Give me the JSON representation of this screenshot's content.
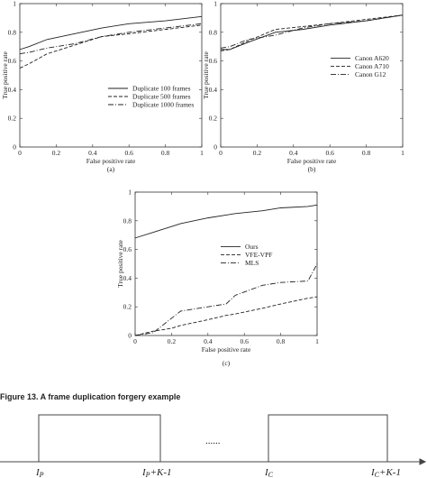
{
  "chart_data": [
    {
      "type": "line",
      "label": "(a)",
      "xlabel": "False positive rate",
      "ylabel": "True positive rate",
      "x": [
        0,
        0.05,
        0.15,
        0.3,
        0.45,
        0.6,
        0.8,
        1
      ],
      "series": [
        {
          "name": "Duplicate 100  frames",
          "color": "#222222",
          "style": "solid",
          "values": [
            0.68,
            0.7,
            0.75,
            0.79,
            0.83,
            0.86,
            0.88,
            0.91
          ]
        },
        {
          "name": "Duplicate 500  frames",
          "color": "#222222",
          "style": "dashed",
          "values": [
            0.55,
            0.58,
            0.65,
            0.71,
            0.77,
            0.79,
            0.82,
            0.85
          ]
        },
        {
          "name": "Duplicate 1000  frames",
          "color": "#222222",
          "style": "dashdot",
          "values": [
            0.65,
            0.66,
            0.69,
            0.72,
            0.77,
            0.8,
            0.83,
            0.86
          ]
        }
      ],
      "xlim": [
        0,
        1
      ],
      "ylim": [
        0,
        1
      ],
      "xticks": [
        0,
        0.2,
        0.4,
        0.6,
        0.8,
        1
      ],
      "yticks": [
        0,
        0.2,
        0.4,
        0.6,
        0.8,
        1
      ],
      "legend": "lower right"
    },
    {
      "type": "line",
      "label": "(b)",
      "xlabel": "False positive rate",
      "ylabel": "True positive rate",
      "x": [
        0,
        0.05,
        0.15,
        0.3,
        0.45,
        0.6,
        0.8,
        1
      ],
      "series": [
        {
          "name": "Canon A620",
          "color": "#222222",
          "style": "solid",
          "values": [
            0.68,
            0.68,
            0.73,
            0.8,
            0.82,
            0.85,
            0.88,
            0.92
          ]
        },
        {
          "name": "Canon A710",
          "color": "#222222",
          "style": "dashed",
          "values": [
            0.67,
            0.68,
            0.74,
            0.82,
            0.84,
            0.86,
            0.89,
            0.92
          ]
        },
        {
          "name": "Canon G12",
          "color": "#222222",
          "style": "dashdot",
          "values": [
            0.69,
            0.7,
            0.75,
            0.78,
            0.83,
            0.86,
            0.88,
            0.92
          ]
        }
      ],
      "xlim": [
        0,
        1
      ],
      "ylim": [
        0,
        1
      ],
      "xticks": [
        0,
        0.2,
        0.4,
        0.6,
        0.8,
        1
      ],
      "yticks": [
        0,
        0.2,
        0.4,
        0.6,
        0.8,
        1
      ],
      "legend": "center right"
    },
    {
      "type": "line",
      "label": "(c)",
      "xlabel": "False positive rate",
      "ylabel": "True positive rate",
      "x": [
        0,
        0.1,
        0.2,
        0.25,
        0.4,
        0.5,
        0.55,
        0.7,
        0.8,
        0.95,
        1
      ],
      "series": [
        {
          "name": "Ours",
          "color": "#222222",
          "style": "solid",
          "values": [
            0.68,
            0.72,
            0.76,
            0.78,
            0.82,
            0.84,
            0.85,
            0.87,
            0.89,
            0.9,
            0.91
          ]
        },
        {
          "name": "VFE-VPF",
          "color": "#222222",
          "style": "dashed",
          "values": [
            0,
            0.03,
            0.05,
            0.07,
            0.11,
            0.14,
            0.15,
            0.19,
            0.22,
            0.26,
            0.27
          ]
        },
        {
          "name": "MLS",
          "color": "#222222",
          "style": "dashdot",
          "values": [
            0,
            0.02,
            0.12,
            0.17,
            0.2,
            0.22,
            0.28,
            0.35,
            0.37,
            0.38,
            0.5
          ]
        }
      ],
      "xlim": [
        0,
        1
      ],
      "ylim": [
        0,
        1
      ],
      "xticks": [
        0,
        0.2,
        0.4,
        0.6,
        0.8,
        1
      ],
      "yticks": [
        0,
        0.2,
        0.4,
        0.6,
        0.8,
        1
      ],
      "legend": "center right"
    }
  ],
  "caption": "Figure 13. A frame duplication forgery example",
  "diagram": {
    "dots": "......",
    "labels": [
      {
        "base": "I",
        "sub": "P",
        "suffix": ""
      },
      {
        "base": "I",
        "sub": "P",
        "suffix": "+K-1"
      },
      {
        "base": "I",
        "sub": "C",
        "suffix": ""
      },
      {
        "base": "I",
        "sub": "C",
        "suffix": "+K-1"
      }
    ]
  }
}
